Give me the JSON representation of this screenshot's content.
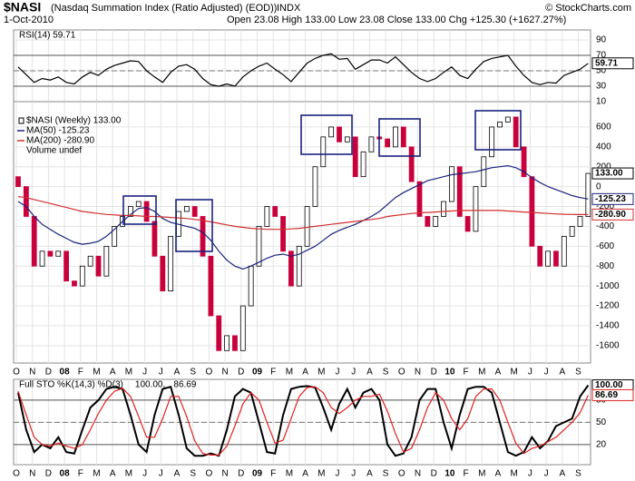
{
  "header": {
    "symbol": "$NASI",
    "title": "(Nasdaq Summation Index (Ratio Adjusted) (EOD))",
    "exchange": "INDX",
    "date": "1-Oct-2010",
    "quote": "Open 23.08 High 133.00 Low 23.08 Close 133.00 Chg +125.30 (+1627.27%)",
    "credit": "© StockCharts.com"
  },
  "months": [
    "O",
    "N",
    "D",
    "08",
    "F",
    "M",
    "A",
    "M",
    "J",
    "J",
    "A",
    "S",
    "O",
    "N",
    "D",
    "09",
    "F",
    "M",
    "A",
    "M",
    "J",
    "J",
    "A",
    "S",
    "O",
    "N",
    "D",
    "10",
    "F",
    "M",
    "A",
    "M",
    "J",
    "J",
    "A",
    "S"
  ],
  "chart_data": [
    {
      "type": "line",
      "title": "RSI(14) 59.71",
      "ylim": [
        10,
        103
      ],
      "yticks": [
        10,
        30,
        50,
        70,
        90
      ],
      "solid_lines": [
        30,
        70
      ],
      "dashed_lines": [
        50
      ],
      "series": [
        {
          "color": "#000000",
          "last_label": "59.71",
          "values": [
            55,
            45,
            35,
            40,
            38,
            42,
            35,
            33,
            42,
            48,
            44,
            52,
            57,
            60,
            63,
            62,
            50,
            42,
            35,
            48,
            56,
            58,
            52,
            40,
            32,
            30,
            33,
            30,
            42,
            50,
            56,
            60,
            52,
            45,
            36,
            48,
            60,
            66,
            70,
            72,
            65,
            66,
            52,
            58,
            64,
            64,
            60,
            68,
            58,
            48,
            40,
            36,
            40,
            48,
            55,
            44,
            40,
            52,
            62,
            66,
            68,
            70,
            56,
            44,
            35,
            32,
            35,
            34,
            44,
            48,
            52,
            59.71
          ]
        }
      ]
    },
    {
      "type": "candlestick",
      "ylim": [
        -1775,
        855
      ],
      "yticks": [
        600,
        400,
        200,
        0,
        -200,
        -400,
        -600,
        -800,
        -1000,
        -1200,
        -1400,
        -1600
      ],
      "extra_legend": "Volume undef",
      "up_color": "#ffffff",
      "down_color": "#c8003c",
      "series": [
        {
          "name": "$NASI (Weekly) 133.00",
          "color": "#000000",
          "last_label": "133.00",
          "open": [
            100,
            0,
            -300,
            -800,
            -650,
            -700,
            -650,
            -950,
            -1000,
            -800,
            -700,
            -900,
            -600,
            -400,
            -300,
            -200,
            -150,
            -350,
            -700,
            -1050,
            -500,
            -250,
            -200,
            -300,
            -700,
            -1300,
            -1650,
            -1500,
            -1650,
            -1200,
            -800,
            -400,
            -200,
            -300,
            -650,
            -1000,
            -600,
            -200,
            200,
            500,
            600,
            450,
            500,
            100,
            350,
            500,
            480,
            400,
            600,
            400,
            50,
            -300,
            -400,
            -300,
            -150,
            200,
            -300,
            -450,
            0,
            300,
            600,
            650,
            700,
            400,
            100,
            -600,
            -800,
            -650,
            -800,
            -500,
            -400,
            -300
          ],
          "close": [
            0,
            -300,
            -800,
            -650,
            -700,
            -650,
            -950,
            -1000,
            -800,
            -700,
            -900,
            -600,
            -400,
            -300,
            -200,
            -150,
            -350,
            -700,
            -1050,
            -500,
            -250,
            -200,
            -300,
            -700,
            -1300,
            -1650,
            -1500,
            -1650,
            -1200,
            -800,
            -400,
            -200,
            -300,
            -650,
            -1000,
            -600,
            -200,
            200,
            500,
            600,
            450,
            500,
            100,
            350,
            500,
            480,
            400,
            600,
            400,
            50,
            -300,
            -400,
            -300,
            -150,
            200,
            -300,
            -450,
            0,
            300,
            600,
            650,
            700,
            400,
            100,
            -600,
            -800,
            -650,
            -800,
            -500,
            -400,
            -300,
            133
          ]
        },
        {
          "name": "MA(50) -125.23",
          "color": "#1a237e",
          "last_label": "-125.23",
          "values": [
            -150,
            -200,
            -300,
            -380,
            -430,
            -480,
            -520,
            -560,
            -580,
            -570,
            -550,
            -500,
            -430,
            -350,
            -280,
            -220,
            -210,
            -250,
            -320,
            -360,
            -380,
            -400,
            -420,
            -460,
            -540,
            -650,
            -740,
            -800,
            -830,
            -800,
            -760,
            -720,
            -690,
            -680,
            -700,
            -680,
            -640,
            -600,
            -540,
            -480,
            -440,
            -410,
            -380,
            -340,
            -300,
            -250,
            -180,
            -110,
            -60,
            -20,
            20,
            60,
            80,
            100,
            120,
            130,
            140,
            150,
            170,
            190,
            200,
            210,
            190,
            150,
            90,
            40,
            0,
            -30,
            -60,
            -90,
            -110,
            -125.23
          ]
        },
        {
          "name": "MA(200) -280.90",
          "color": "#d32f2f",
          "last_label": "-280.90",
          "values": [
            -100,
            -110,
            -130,
            -150,
            -170,
            -190,
            -210,
            -230,
            -250,
            -260,
            -270,
            -280,
            -285,
            -290,
            -290,
            -295,
            -300,
            -300,
            -305,
            -310,
            -315,
            -320,
            -330,
            -340,
            -355,
            -370,
            -385,
            -400,
            -410,
            -420,
            -425,
            -430,
            -430,
            -430,
            -425,
            -420,
            -410,
            -400,
            -390,
            -380,
            -370,
            -360,
            -350,
            -340,
            -330,
            -320,
            -300,
            -290,
            -280,
            -270,
            -265,
            -260,
            -255,
            -250,
            -245,
            -240,
            -240,
            -240,
            -240,
            -240,
            -240,
            -245,
            -250,
            -255,
            -260,
            -265,
            -270,
            -275,
            -278,
            -280,
            -281,
            -280.9
          ]
        }
      ]
    },
    {
      "type": "line",
      "title": "Full STO %K(14,3) %D(3)",
      "ylim": [
        -7,
        108
      ],
      "yticks": [
        20,
        50,
        80
      ],
      "solid_lines": [
        20,
        80
      ],
      "dashed_lines": [
        50
      ],
      "series": [
        {
          "legend": "100.00,",
          "color": "#000000",
          "last_label": "100.00",
          "width": 2,
          "values": [
            90,
            40,
            10,
            20,
            15,
            30,
            10,
            8,
            40,
            70,
            80,
            95,
            98,
            95,
            60,
            20,
            10,
            60,
            95,
            98,
            60,
            15,
            5,
            5,
            8,
            5,
            40,
            85,
            95,
            90,
            50,
            10,
            8,
            60,
            95,
            98,
            99,
            97,
            70,
            40,
            75,
            95,
            70,
            90,
            95,
            80,
            20,
            5,
            8,
            30,
            80,
            95,
            95,
            50,
            15,
            60,
            95,
            98,
            98,
            90,
            50,
            10,
            5,
            10,
            30,
            15,
            25,
            45,
            50,
            55,
            85,
            100
          ]
        },
        {
          "legend": "86.69",
          "color": "#e02020",
          "last_label": "86.69",
          "width": 1.2,
          "values": [
            92,
            60,
            30,
            20,
            18,
            22,
            18,
            15,
            20,
            40,
            62,
            80,
            92,
            96,
            85,
            58,
            30,
            30,
            55,
            85,
            85,
            58,
            25,
            8,
            6,
            6,
            18,
            45,
            75,
            90,
            80,
            50,
            22,
            26,
            55,
            85,
            97,
            98,
            90,
            70,
            62,
            70,
            80,
            85,
            85,
            88,
            65,
            35,
            10,
            15,
            40,
            70,
            90,
            80,
            55,
            40,
            55,
            85,
            95,
            95,
            80,
            50,
            22,
            8,
            15,
            18,
            24,
            30,
            40,
            50,
            63,
            86.69
          ]
        }
      ]
    }
  ]
}
